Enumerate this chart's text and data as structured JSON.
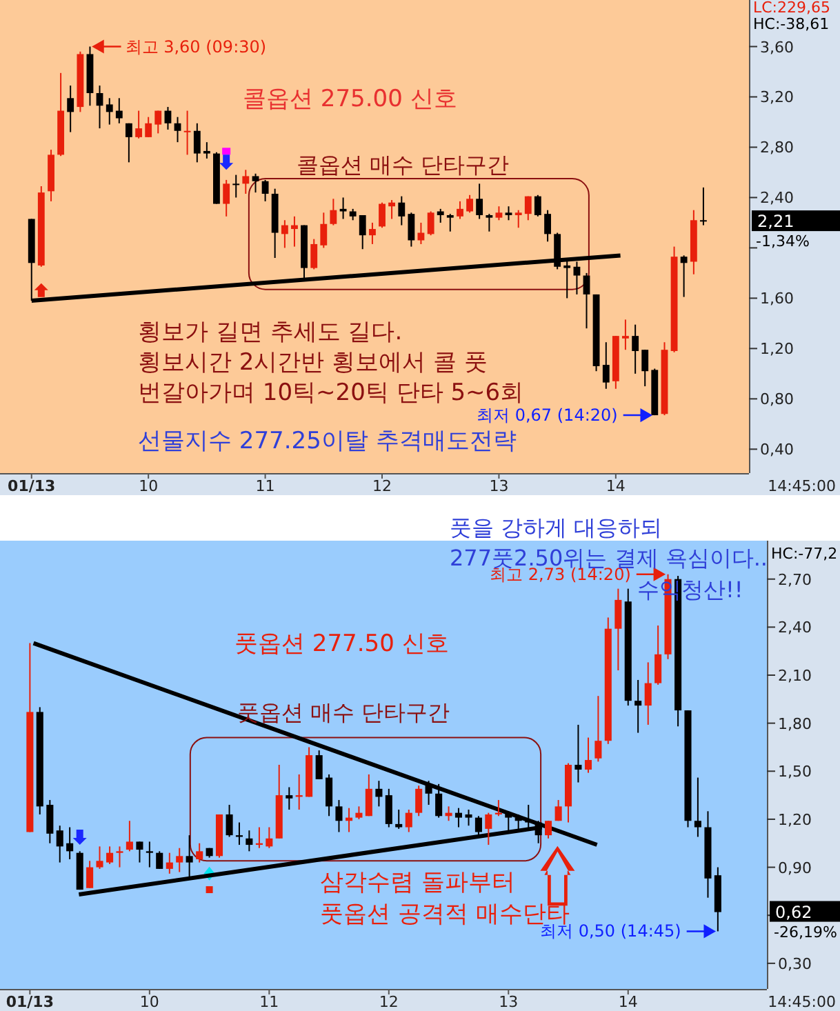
{
  "chart_data": [
    {
      "type": "candlestick",
      "xlim": [
        8.73,
        15.14
      ],
      "ylim": [
        0.21,
        3.97
      ],
      "xticks": [
        {
          "value": 9,
          "label": "01/13"
        },
        10,
        11,
        12,
        13,
        14
      ],
      "yticks": [
        {
          "value": 0.4,
          "label": "0,40"
        },
        {
          "value": 0.8,
          "label": "0,80"
        },
        {
          "value": 1.2,
          "label": "1,20"
        },
        {
          "value": 1.6,
          "label": "1,60"
        },
        {
          "value": 2.0,
          "label": null
        },
        {
          "value": 2.4,
          "label": "2,40"
        },
        {
          "value": 2.8,
          "label": "2,80"
        },
        {
          "value": 3.2,
          "label": "3,20"
        },
        {
          "value": 3.6,
          "label": "3,60"
        }
      ],
      "x": [
        9,
        9.083,
        9.167,
        9.25,
        9.333,
        9.417,
        9.5,
        9.583,
        9.667,
        9.75,
        9.833,
        9.917,
        10,
        10.083,
        10.167,
        10.25,
        10.333,
        10.417,
        10.5,
        10.583,
        10.667,
        10.75,
        10.833,
        10.917,
        11,
        11.083,
        11.167,
        11.25,
        11.333,
        11.417,
        11.5,
        11.583,
        11.667,
        11.75,
        11.833,
        11.917,
        12,
        12.083,
        12.167,
        12.25,
        12.333,
        12.417,
        12.5,
        12.583,
        12.667,
        12.75,
        12.833,
        12.917,
        13,
        13.083,
        13.167,
        13.25,
        13.333,
        13.417,
        13.5,
        13.583,
        13.667,
        13.75,
        13.833,
        13.917,
        14,
        14.083,
        14.167,
        14.25,
        14.333,
        14.417,
        14.5,
        14.583,
        14.667,
        14.75
      ],
      "ohlc": [
        [
          2.23,
          2.23,
          1.58,
          1.88
        ],
        [
          1.86,
          2.49,
          1.85,
          2.44
        ],
        [
          2.45,
          2.78,
          2.37,
          2.74
        ],
        [
          2.74,
          3.39,
          2.73,
          3.09
        ],
        [
          3.19,
          3.29,
          2.92,
          3.08
        ],
        [
          3.12,
          3.56,
          3.08,
          3.54
        ],
        [
          3.54,
          3.6,
          3.13,
          3.23
        ],
        [
          3.23,
          3.29,
          2.95,
          3.13
        ],
        [
          3.14,
          3.19,
          2.98,
          3.08
        ],
        [
          3.09,
          3.19,
          2.99,
          3.03
        ],
        [
          2.99,
          2.99,
          2.68,
          2.88
        ],
        [
          2.88,
          3.09,
          2.87,
          2.95
        ],
        [
          2.88,
          3.04,
          2.88,
          2.99
        ],
        [
          2.98,
          3.09,
          2.91,
          3.09
        ],
        [
          3.09,
          3.12,
          2.94,
          2.99
        ],
        [
          2.99,
          3.04,
          2.84,
          2.93
        ],
        [
          2.92,
          3.09,
          2.74,
          2.93
        ],
        [
          2.93,
          2.99,
          2.68,
          2.75
        ],
        [
          2.77,
          2.84,
          2.71,
          2.75
        ],
        [
          2.75,
          2.76,
          2.35,
          2.35
        ],
        [
          2.35,
          2.54,
          2.25,
          2.51
        ],
        [
          2.51,
          2.58,
          2.4,
          2.5
        ],
        [
          2.51,
          2.62,
          2.43,
          2.57
        ],
        [
          2.57,
          2.59,
          2.44,
          2.53
        ],
        [
          2.53,
          2.54,
          2.37,
          2.43
        ],
        [
          2.43,
          2.47,
          1.92,
          2.12
        ],
        [
          2.11,
          2.22,
          2.0,
          2.18
        ],
        [
          2.15,
          2.25,
          2.01,
          2.18
        ],
        [
          2.18,
          2.18,
          1.75,
          1.84
        ],
        [
          1.84,
          2.07,
          1.83,
          2.03
        ],
        [
          2.02,
          2.28,
          2.0,
          2.19
        ],
        [
          2.19,
          2.39,
          2.18,
          2.3
        ],
        [
          2.31,
          2.4,
          2.23,
          2.29
        ],
        [
          2.29,
          2.31,
          2.22,
          2.25
        ],
        [
          2.26,
          2.26,
          1.99,
          2.1
        ],
        [
          2.1,
          2.2,
          2.03,
          2.15
        ],
        [
          2.17,
          2.36,
          2.16,
          2.35
        ],
        [
          2.33,
          2.38,
          2.23,
          2.36
        ],
        [
          2.36,
          2.41,
          2.18,
          2.25
        ],
        [
          2.27,
          2.28,
          2.01,
          2.06
        ],
        [
          2.06,
          2.2,
          2.03,
          2.12
        ],
        [
          2.11,
          2.29,
          2.1,
          2.28
        ],
        [
          2.29,
          2.31,
          2.2,
          2.26
        ],
        [
          2.26,
          2.27,
          2.13,
          2.24
        ],
        [
          2.25,
          2.37,
          2.23,
          2.31
        ],
        [
          2.29,
          2.42,
          2.28,
          2.39
        ],
        [
          2.39,
          2.51,
          2.23,
          2.26
        ],
        [
          2.26,
          2.27,
          2.13,
          2.24
        ],
        [
          2.24,
          2.33,
          2.22,
          2.28
        ],
        [
          2.28,
          2.33,
          2.22,
          2.26
        ],
        [
          2.26,
          2.3,
          2.16,
          2.28
        ],
        [
          2.27,
          2.41,
          2.22,
          2.41
        ],
        [
          2.41,
          2.42,
          2.25,
          2.26
        ],
        [
          2.27,
          2.3,
          2.05,
          2.11
        ],
        [
          2.11,
          2.12,
          1.83,
          1.85
        ],
        [
          1.86,
          1.92,
          1.6,
          1.84
        ],
        [
          1.85,
          1.89,
          1.63,
          1.78
        ],
        [
          1.78,
          1.8,
          1.36,
          1.63
        ],
        [
          1.63,
          1.63,
          1.02,
          1.06
        ],
        [
          1.07,
          1.25,
          0.88,
          0.93
        ],
        [
          0.94,
          1.3,
          0.88,
          1.3
        ],
        [
          1.28,
          1.43,
          1.19,
          1.3
        ],
        [
          1.3,
          1.39,
          1.0,
          1.18
        ],
        [
          1.19,
          1.19,
          0.9,
          1.02
        ],
        [
          1.03,
          1.04,
          0.67,
          0.67
        ],
        [
          0.68,
          1.25,
          0.67,
          1.19
        ],
        [
          1.18,
          2.01,
          1.17,
          1.93
        ],
        [
          1.93,
          1.94,
          1.61,
          1.88
        ],
        [
          1.89,
          2.3,
          1.79,
          2.22
        ],
        [
          2.22,
          2.48,
          2.18,
          2.21
        ]
      ],
      "colors": [
        "#000000",
        "#e8200c",
        "#e8200c",
        "#e8200c",
        "#000000",
        "#e8200c",
        "#000000",
        "#000000",
        "#000000",
        "#000000",
        "#000000",
        "#e8200c",
        "#e8200c",
        "#e8200c",
        "#000000",
        "#000000",
        "#e8200c",
        "#000000",
        "#000000",
        "#000000",
        "#e8200c",
        "#000000",
        "#e8200c",
        "#000000",
        "#000000",
        "#000000",
        "#e8200c",
        "#e8200c",
        "#000000",
        "#e8200c",
        "#e8200c",
        "#e8200c",
        "#000000",
        "#000000",
        "#000000",
        "#e8200c",
        "#e8200c",
        "#e8200c",
        "#000000",
        "#000000",
        "#e8200c",
        "#e8200c",
        "#000000",
        "#000000",
        "#e8200c",
        "#e8200c",
        "#000000",
        "#000000",
        "#e8200c",
        "#000000",
        "#e8200c",
        "#e8200c",
        "#000000",
        "#000000",
        "#000000",
        "#000000",
        "#000000",
        "#000000",
        "#000000",
        "#000000",
        "#e8200c",
        "#e8200c",
        "#000000",
        "#000000",
        "#000000",
        "#e8200c",
        "#e8200c",
        "#000000",
        "#e8200c",
        "#000000"
      ],
      "series": [
        {
          "type": "line",
          "x": [
            9.0,
            14.04
          ],
          "values": [
            1.58,
            1.94
          ],
          "color": "#000000"
        }
      ],
      "annotations": [
        "최고 3,60 (09:30)",
        "최저 0,67 (14:20)",
        "콜옵션 275.00 신호",
        "콜옵션 매수 단타구간",
        "횡보가 길면 추세도 길다.",
        "횡보시간 2시간반 횡보에서 콜 풋",
        "번갈아가며 10틱~20틱 단타 5~6회",
        "선물지수 277.25이탈 추격매도전략",
        "LC:229,65",
        "HC:-38,61",
        "2,21",
        "-1,34%",
        "14:45:00"
      ]
    },
    {
      "type": "candlestick",
      "xlim": [
        8.75,
        15.16
      ],
      "ylim": [
        0.14,
        2.94
      ],
      "xticks": [
        {
          "value": 9,
          "label": "01/13"
        },
        10,
        11,
        12,
        13,
        14
      ],
      "yticks": [
        {
          "value": 0.3,
          "label": "0,30"
        },
        {
          "value": 0.6,
          "label": null
        },
        {
          "value": 0.9,
          "label": "0,90"
        },
        {
          "value": 1.2,
          "label": "1,20"
        },
        {
          "value": 1.5,
          "label": "1,50"
        },
        {
          "value": 1.8,
          "label": "1,80"
        },
        {
          "value": 2.1,
          "label": "2,10"
        },
        {
          "value": 2.4,
          "label": "2,40"
        },
        {
          "value": 2.7,
          "label": "2,70"
        }
      ],
      "x": [
        9,
        9.083,
        9.167,
        9.25,
        9.333,
        9.417,
        9.5,
        9.583,
        9.667,
        9.75,
        9.833,
        9.917,
        10,
        10.083,
        10.167,
        10.25,
        10.333,
        10.417,
        10.5,
        10.583,
        10.667,
        10.75,
        10.833,
        10.917,
        11,
        11.083,
        11.167,
        11.25,
        11.333,
        11.417,
        11.5,
        11.583,
        11.667,
        11.75,
        11.833,
        11.917,
        12,
        12.083,
        12.167,
        12.25,
        12.333,
        12.417,
        12.5,
        12.583,
        12.667,
        12.75,
        12.833,
        12.917,
        13,
        13.083,
        13.167,
        13.25,
        13.333,
        13.417,
        13.5,
        13.583,
        13.667,
        13.75,
        13.833,
        13.917,
        14,
        14.083,
        14.167,
        14.25,
        14.333,
        14.417,
        14.5,
        14.583,
        14.667,
        14.75
      ],
      "ohlc": [
        [
          1.12,
          2.3,
          1.12,
          1.87
        ],
        [
          1.87,
          1.9,
          1.23,
          1.28
        ],
        [
          1.29,
          1.32,
          1.05,
          1.11
        ],
        [
          1.13,
          1.16,
          0.93,
          1.03
        ],
        [
          1.05,
          1.15,
          0.95,
          1.0
        ],
        [
          0.99,
          1.0,
          0.76,
          0.76
        ],
        [
          0.77,
          0.94,
          0.77,
          0.9
        ],
        [
          0.9,
          1.03,
          0.89,
          0.94
        ],
        [
          0.93,
          1.03,
          0.92,
          0.99
        ],
        [
          0.99,
          1.03,
          0.9,
          1.0
        ],
        [
          1.01,
          1.19,
          1.0,
          1.06
        ],
        [
          1.06,
          1.06,
          0.93,
          1.01
        ],
        [
          1.0,
          1.06,
          0.9,
          0.99
        ],
        [
          0.99,
          1.0,
          0.89,
          0.89
        ],
        [
          0.89,
          0.99,
          0.86,
          0.93
        ],
        [
          0.93,
          1.02,
          0.87,
          0.97
        ],
        [
          0.97,
          1.1,
          0.84,
          0.93
        ],
        [
          0.95,
          1.05,
          0.93,
          1.0
        ],
        [
          1.02,
          1.02,
          0.96,
          0.97
        ],
        [
          0.97,
          1.23,
          0.96,
          1.23
        ],
        [
          1.23,
          1.29,
          1.09,
          1.1
        ],
        [
          1.1,
          1.18,
          1.04,
          1.09
        ],
        [
          1.08,
          1.13,
          1.0,
          1.04
        ],
        [
          1.04,
          1.15,
          1.02,
          1.05
        ],
        [
          1.03,
          1.15,
          1.02,
          1.08
        ],
        [
          1.08,
          1.54,
          1.08,
          1.35
        ],
        [
          1.35,
          1.4,
          1.26,
          1.33
        ],
        [
          1.34,
          1.48,
          1.26,
          1.35
        ],
        [
          1.34,
          1.65,
          1.34,
          1.6
        ],
        [
          1.6,
          1.63,
          1.45,
          1.45
        ],
        [
          1.46,
          1.48,
          1.22,
          1.28
        ],
        [
          1.28,
          1.32,
          1.12,
          1.19
        ],
        [
          1.19,
          1.27,
          1.12,
          1.21
        ],
        [
          1.21,
          1.28,
          1.2,
          1.24
        ],
        [
          1.22,
          1.48,
          1.22,
          1.39
        ],
        [
          1.39,
          1.44,
          1.28,
          1.34
        ],
        [
          1.35,
          1.39,
          1.15,
          1.17
        ],
        [
          1.17,
          1.26,
          1.14,
          1.15
        ],
        [
          1.15,
          1.26,
          1.12,
          1.24
        ],
        [
          1.24,
          1.41,
          1.22,
          1.39
        ],
        [
          1.42,
          1.44,
          1.29,
          1.36
        ],
        [
          1.36,
          1.42,
          1.21,
          1.22
        ],
        [
          1.22,
          1.28,
          1.19,
          1.24
        ],
        [
          1.24,
          1.27,
          1.15,
          1.21
        ],
        [
          1.23,
          1.26,
          1.16,
          1.21
        ],
        [
          1.21,
          1.22,
          1.09,
          1.12
        ],
        [
          1.14,
          1.24,
          1.04,
          1.23
        ],
        [
          1.23,
          1.32,
          1.22,
          1.24
        ],
        [
          1.24,
          1.25,
          1.13,
          1.21
        ],
        [
          1.21,
          1.23,
          1.13,
          1.19
        ],
        [
          1.19,
          1.29,
          1.13,
          1.18
        ],
        [
          1.18,
          1.19,
          1.05,
          1.1
        ],
        [
          1.1,
          1.19,
          1.08,
          1.19
        ],
        [
          1.19,
          1.32,
          1.19,
          1.28
        ],
        [
          1.28,
          1.55,
          1.18,
          1.54
        ],
        [
          1.54,
          1.79,
          1.43,
          1.51
        ],
        [
          1.51,
          1.71,
          1.49,
          1.57
        ],
        [
          1.58,
          1.97,
          1.56,
          1.69
        ],
        [
          1.69,
          2.46,
          1.67,
          2.39
        ],
        [
          2.39,
          2.64,
          2.13,
          2.57
        ],
        [
          2.56,
          2.64,
          1.91,
          1.94
        ],
        [
          1.94,
          2.07,
          1.74,
          1.91
        ],
        [
          1.91,
          2.18,
          1.79,
          2.05
        ],
        [
          2.05,
          2.41,
          2.04,
          2.23
        ],
        [
          2.23,
          2.73,
          2.2,
          2.7
        ],
        [
          2.7,
          2.72,
          1.78,
          1.88
        ],
        [
          1.88,
          1.88,
          1.15,
          1.19
        ],
        [
          1.19,
          1.46,
          1.09,
          1.15
        ],
        [
          1.15,
          1.25,
          0.71,
          0.83
        ],
        [
          0.85,
          0.9,
          0.5,
          0.62
        ]
      ],
      "colors": [
        "#e8200c",
        "#000000",
        "#000000",
        "#000000",
        "#000000",
        "#000000",
        "#e8200c",
        "#e8200c",
        "#e8200c",
        "#e8200c",
        "#e8200c",
        "#000000",
        "#000000",
        "#000000",
        "#e8200c",
        "#e8200c",
        "#000000",
        "#e8200c",
        "#000000",
        "#e8200c",
        "#000000",
        "#000000",
        "#000000",
        "#e8200c",
        "#e8200c",
        "#e8200c",
        "#000000",
        "#e8200c",
        "#e8200c",
        "#000000",
        "#000000",
        "#000000",
        "#e8200c",
        "#e8200c",
        "#e8200c",
        "#000000",
        "#000000",
        "#000000",
        "#e8200c",
        "#e8200c",
        "#000000",
        "#000000",
        "#e8200c",
        "#000000",
        "#000000",
        "#000000",
        "#e8200c",
        "#e8200c",
        "#000000",
        "#000000",
        "#000000",
        "#000000",
        "#e8200c",
        "#e8200c",
        "#e8200c",
        "#000000",
        "#e8200c",
        "#e8200c",
        "#e8200c",
        "#e8200c",
        "#000000",
        "#000000",
        "#e8200c",
        "#e8200c",
        "#e8200c",
        "#000000",
        "#000000",
        "#000000",
        "#000000",
        "#000000"
      ],
      "series": [
        {
          "type": "line",
          "x": [
            9.03,
            13.74
          ],
          "values": [
            2.3,
            1.04
          ],
          "color": "#000000"
        },
        {
          "type": "line",
          "x": [
            9.41,
            13.28
          ],
          "values": [
            0.73,
            1.15
          ],
          "color": "#000000"
        }
      ],
      "annotations": [
        "최고 2,73 (14:20)",
        "최저 0,50 (14:45)",
        "풋옵션 277.50 신호",
        "풋옵션 매수 단타구간",
        "삼각수렴 돌파부터",
        "풋옵션 공격적 매수단타",
        "풋을 강하게 대응하되",
        "277풋2.50위는 결제 욕심이다..",
        "수익청산!!",
        "HC:-77,2",
        "0,62",
        "-26,19%",
        "14:45:00"
      ]
    }
  ]
}
